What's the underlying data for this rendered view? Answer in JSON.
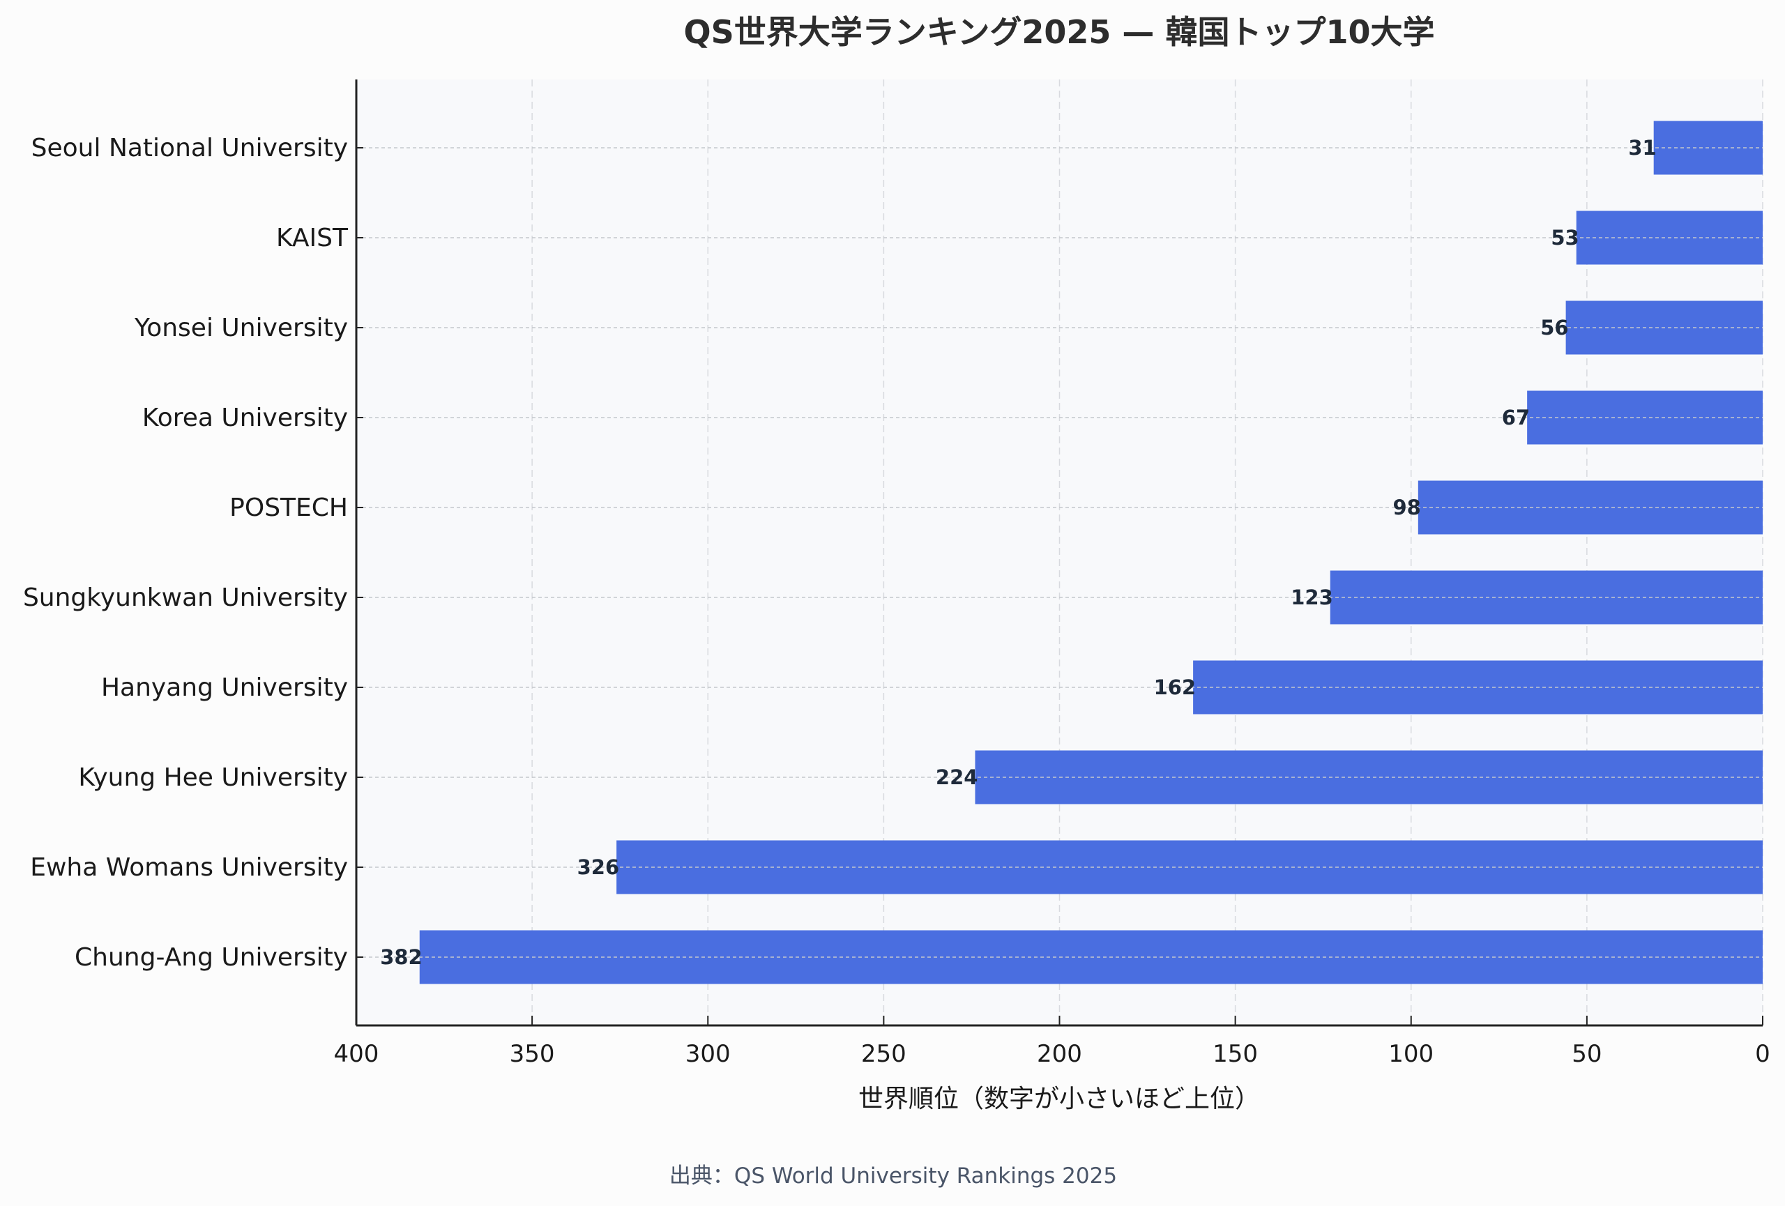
{
  "chart_data": {
    "type": "bar",
    "orientation": "horizontal",
    "title": "QS世界大学ランキング2025 — 韓国トップ10大学",
    "xlabel": "世界順位（数字が小さいほど上位）",
    "ylabel": "",
    "categories": [
      "Seoul National University",
      "KAIST",
      "Yonsei University",
      "Korea University",
      "POSTECH",
      "Sungkyunkwan University",
      "Hanyang University",
      "Kyung Hee University",
      "Ewha Womans University",
      "Chung-Ang University"
    ],
    "values": [
      31,
      53,
      56,
      67,
      98,
      123,
      162,
      224,
      326,
      382
    ],
    "xlim": [
      400,
      0
    ],
    "xticks": [
      400,
      350,
      300,
      250,
      200,
      150,
      100,
      50,
      0
    ],
    "x_inverted": true,
    "grid": true,
    "bar_color": "#4a6ee0",
    "source": "出典：QS World University Rankings 2025"
  }
}
